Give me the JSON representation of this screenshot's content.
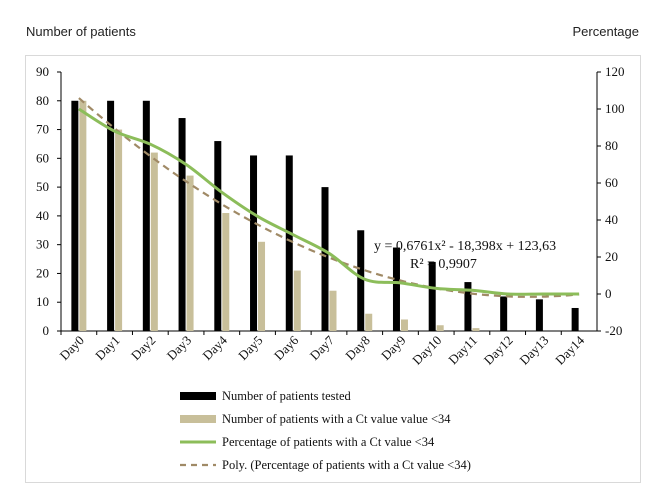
{
  "header": {
    "left_title": "Number of patients",
    "right_title": "Percentage"
  },
  "chart_data": {
    "type": "bar",
    "categories": [
      "Day0",
      "Day1",
      "Day2",
      "Day3",
      "Day4",
      "Day5",
      "Day6",
      "Day7",
      "Day8",
      "Day9",
      "Day10",
      "Day11",
      "Day12",
      "Day13",
      "Day14"
    ],
    "y_left_ticks": [
      0,
      10,
      20,
      30,
      40,
      50,
      60,
      70,
      80,
      90
    ],
    "y_right_ticks": [
      -20,
      0,
      20,
      40,
      60,
      80,
      100,
      120
    ],
    "ylim_left": [
      0,
      90
    ],
    "ylim_right": [
      -20,
      120
    ],
    "series": [
      {
        "name": "Number of patients tested",
        "type": "bar",
        "axis": "left",
        "color": "#000000",
        "values": [
          80,
          80,
          80,
          74,
          66,
          61,
          61,
          50,
          35,
          29,
          24,
          17,
          12,
          11,
          8
        ]
      },
      {
        "name": "Number of patients with a Ct value value <34",
        "type": "bar",
        "axis": "left",
        "color": "#c8bf9a",
        "values": [
          80,
          70,
          62,
          54,
          41,
          31,
          21,
          14,
          6,
          4,
          2,
          1,
          0,
          0,
          0
        ]
      },
      {
        "name": "Percentage of patients with a Ct value <34",
        "type": "line",
        "axis": "right",
        "color": "#8cbd5a",
        "values": [
          100,
          88,
          81,
          70,
          55,
          42,
          32,
          22,
          8,
          6,
          3,
          2,
          0,
          0,
          0
        ]
      },
      {
        "name": "Poly. (Percentage of patients with a Ct value <34)",
        "type": "dashed-line",
        "axis": "right",
        "color": "#a08a66",
        "formula": {
          "a": 0.6761,
          "b": -18.398,
          "c": 123.63
        }
      }
    ],
    "annotation": {
      "equation": "y = 0,6761x² - 18,398x + 123,63",
      "r_squared": "R² = 0,9907"
    },
    "legend_position": "bottom",
    "grid": false
  }
}
